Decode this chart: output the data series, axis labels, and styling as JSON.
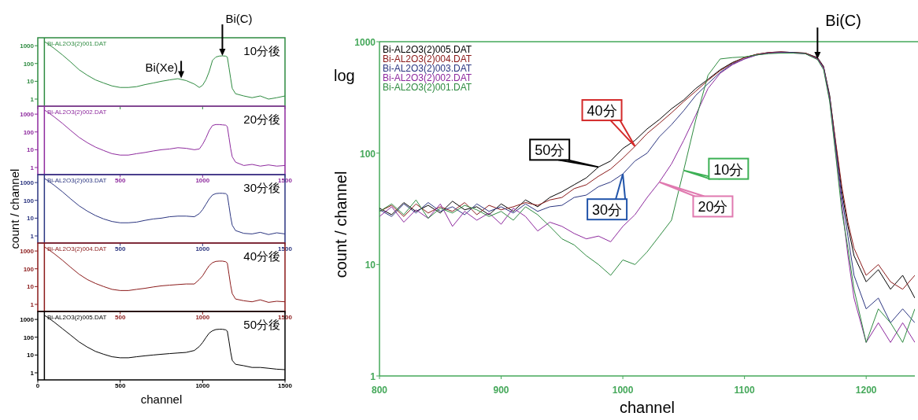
{
  "chart_data": [
    {
      "type": "line",
      "log": true,
      "legend": "top left",
      "tick_labels": "y",
      "xlim": [
        0,
        1500
      ],
      "ylim": [
        0.4,
        2800
      ],
      "xticks": [
        0,
        500,
        1000,
        1500
      ],
      "yticks": [
        1,
        10,
        100,
        1000
      ],
      "annotations": [
        "10分後",
        {
          "text": "Bi(Xe)",
          "x": 870,
          "y": 15
        },
        {
          "text": "Bi(C)",
          "x": 1120,
          "y": 270
        }
      ],
      "ref_lines": [
        {
          "axis": "x",
          "value": 40
        }
      ],
      "x": [
        40,
        60,
        100,
        150,
        200,
        250,
        300,
        350,
        400,
        450,
        500,
        550,
        600,
        650,
        700,
        750,
        800,
        850,
        900,
        950,
        980,
        1000,
        1020,
        1040,
        1060,
        1080,
        1100,
        1120,
        1140,
        1150,
        1160,
        1170,
        1180,
        1200,
        1250,
        1300,
        1350,
        1400,
        1450,
        1500
      ],
      "series": [
        {
          "name": "Bi-AL2O3(2)001.DAT",
          "color": "#2e8b40",
          "values": [
            1700,
            1300,
            700,
            300,
            120,
            45,
            22,
            12,
            8,
            5.5,
            4.5,
            4.5,
            5,
            6.5,
            8,
            10,
            12,
            14,
            11,
            7,
            4.5,
            6,
            12,
            35,
            150,
            230,
            260,
            270,
            260,
            230,
            60,
            15,
            4,
            2,
            1.5,
            1.2,
            1.5,
            1,
            1.2,
            1.5
          ]
        }
      ]
    },
    {
      "type": "line",
      "log": true,
      "legend": "top left",
      "xlim": [
        0,
        1500
      ],
      "ylim": [
        0.4,
        2800
      ],
      "xticks": [
        500,
        1000,
        1500
      ],
      "yticks": [
        1,
        10,
        100,
        1000
      ],
      "annotations": [
        "20分後"
      ],
      "ref_lines": [
        {
          "axis": "x",
          "value": 40
        }
      ],
      "x": [
        40,
        60,
        100,
        150,
        200,
        250,
        300,
        350,
        400,
        450,
        500,
        550,
        600,
        650,
        700,
        750,
        800,
        850,
        900,
        950,
        980,
        1000,
        1020,
        1040,
        1060,
        1080,
        1100,
        1120,
        1140,
        1150,
        1160,
        1170,
        1180,
        1200,
        1250,
        1300,
        1350,
        1400,
        1450,
        1500
      ],
      "series": [
        {
          "name": "Bi-AL2O3(2)002.DAT",
          "color": "#8e2a9e",
          "values": [
            1700,
            1300,
            700,
            300,
            120,
            50,
            25,
            14,
            9,
            6,
            5,
            5,
            6,
            7,
            8.5,
            10,
            11,
            13,
            12,
            10,
            11,
            20,
            45,
            120,
            230,
            260,
            260,
            250,
            240,
            200,
            50,
            12,
            4,
            2,
            1.3,
            1.5,
            1.2,
            1.4,
            1.2,
            1.3
          ]
        }
      ]
    },
    {
      "type": "line",
      "log": true,
      "legend": "top left",
      "xlim": [
        0,
        1500
      ],
      "ylim": [
        0.4,
        2800
      ],
      "xticks": [
        500,
        1000,
        1500
      ],
      "yticks": [
        1,
        10,
        100,
        1000
      ],
      "ylabel": "count / channel",
      "annotations": [
        "30分後"
      ],
      "ref_lines": [
        {
          "axis": "x",
          "value": 40
        }
      ],
      "x": [
        40,
        60,
        100,
        150,
        200,
        250,
        300,
        350,
        400,
        450,
        500,
        550,
        600,
        650,
        700,
        750,
        800,
        850,
        900,
        950,
        980,
        1000,
        1020,
        1040,
        1060,
        1080,
        1100,
        1120,
        1140,
        1150,
        1160,
        1170,
        1180,
        1200,
        1250,
        1300,
        1350,
        1400,
        1450,
        1500
      ],
      "series": [
        {
          "name": "Bi-AL2O3(2)003.DAT",
          "color": "#2b3580",
          "values": [
            1700,
            1300,
            700,
            300,
            120,
            50,
            25,
            14,
            9,
            6.5,
            5.5,
            5.5,
            6,
            7.5,
            9,
            10,
            12,
            13,
            13,
            12,
            18,
            30,
            60,
            120,
            200,
            240,
            250,
            250,
            240,
            200,
            50,
            12,
            4,
            2,
            1.4,
            1.3,
            1.6,
            1.2,
            1.5,
            1.3
          ]
        }
      ]
    },
    {
      "type": "line",
      "log": true,
      "legend": "top left",
      "xlim": [
        0,
        1500
      ],
      "ylim": [
        0.4,
        2800
      ],
      "xticks": [
        500,
        1000,
        1500
      ],
      "yticks": [
        1,
        10,
        100,
        1000
      ],
      "annotations": [
        "40分後"
      ],
      "ref_lines": [
        {
          "axis": "x",
          "value": 40
        }
      ],
      "x": [
        40,
        60,
        100,
        150,
        200,
        250,
        300,
        350,
        400,
        450,
        500,
        550,
        600,
        650,
        700,
        750,
        800,
        850,
        900,
        950,
        980,
        1000,
        1020,
        1040,
        1060,
        1080,
        1100,
        1120,
        1140,
        1150,
        1160,
        1170,
        1180,
        1200,
        1250,
        1300,
        1350,
        1400,
        1450,
        1500
      ],
      "series": [
        {
          "name": "Bi-AL2O3(2)004.DAT",
          "color": "#8b1a1a",
          "values": [
            1700,
            1300,
            700,
            300,
            120,
            50,
            25,
            15,
            10,
            7,
            6,
            6,
            7,
            8,
            9.5,
            11,
            12,
            13,
            14,
            14,
            25,
            40,
            80,
            150,
            220,
            260,
            270,
            270,
            250,
            210,
            50,
            12,
            4,
            2,
            1.6,
            1.4,
            1.8,
            1.3,
            1.5,
            1.4
          ]
        }
      ]
    },
    {
      "type": "line",
      "log": true,
      "legend": "top left",
      "xlim": [
        0,
        1500
      ],
      "ylim": [
        0.4,
        2800
      ],
      "xticks": [
        0,
        500,
        1000,
        1500
      ],
      "yticks": [
        1,
        10,
        100,
        1000
      ],
      "xlabel": "channel",
      "annotations": [
        "50分後"
      ],
      "ref_lines": [
        {
          "axis": "x",
          "value": 40
        }
      ],
      "x": [
        40,
        60,
        100,
        150,
        200,
        250,
        300,
        350,
        400,
        450,
        500,
        550,
        600,
        650,
        700,
        750,
        800,
        850,
        900,
        950,
        980,
        1000,
        1020,
        1040,
        1060,
        1080,
        1100,
        1120,
        1140,
        1150,
        1160,
        1170,
        1180,
        1200,
        1250,
        1300,
        1350,
        1400,
        1450,
        1500
      ],
      "series": [
        {
          "name": "Bi-AL2O3(2)005.DAT",
          "color": "#000000",
          "values": [
            1700,
            1300,
            700,
            300,
            130,
            55,
            28,
            16,
            11,
            8,
            7,
            7,
            8,
            9,
            10,
            11,
            12,
            13,
            14,
            18,
            30,
            50,
            95,
            170,
            230,
            270,
            280,
            280,
            260,
            220,
            60,
            15,
            5,
            3,
            2.5,
            2,
            2,
            1.8,
            1.6,
            1.5
          ]
        }
      ]
    },
    {
      "type": "line",
      "log": true,
      "legend": "top left",
      "xlim": [
        800,
        1240
      ],
      "ylim": [
        1,
        1000
      ],
      "xticks": [
        800,
        900,
        1000,
        1100,
        1200
      ],
      "yticks": [
        1,
        10,
        100,
        1000
      ],
      "xlabel": "channel",
      "ylabel": "count / channel",
      "annotations": [
        "log",
        {
          "text": "Bi(C)",
          "x": 1160,
          "y": 700
        },
        {
          "text": "50分",
          "x": 980,
          "y": 75
        },
        {
          "text": "40分",
          "x": 1010,
          "y": 115
        },
        {
          "text": "30分",
          "x": 1000,
          "y": 65
        },
        {
          "text": "20分",
          "x": 1030,
          "y": 55
        },
        {
          "text": "10分",
          "x": 1050,
          "y": 70
        }
      ],
      "x": [
        800,
        810,
        820,
        830,
        840,
        850,
        860,
        870,
        880,
        890,
        900,
        910,
        920,
        930,
        940,
        950,
        960,
        970,
        980,
        990,
        1000,
        1010,
        1020,
        1030,
        1040,
        1050,
        1060,
        1070,
        1080,
        1090,
        1100,
        1110,
        1120,
        1130,
        1140,
        1150,
        1160,
        1165,
        1170,
        1175,
        1180,
        1185,
        1190,
        1200,
        1210,
        1220,
        1230,
        1240
      ],
      "series": [
        {
          "name": "Bi-AL2O3(2)005.DAT",
          "color": "#000000",
          "values": [
            32,
            28,
            36,
            30,
            34,
            29,
            37,
            31,
            33,
            28,
            35,
            30,
            38,
            33,
            40,
            45,
            52,
            60,
            75,
            85,
            110,
            130,
            165,
            200,
            250,
            300,
            380,
            460,
            560,
            650,
            720,
            770,
            800,
            810,
            800,
            790,
            720,
            600,
            330,
            120,
            45,
            22,
            12,
            7,
            9,
            6,
            8,
            5
          ]
        },
        {
          "name": "Bi-AL2O3(2)004.DAT",
          "color": "#8b1a1a",
          "values": [
            30,
            34,
            27,
            35,
            29,
            33,
            30,
            36,
            28,
            34,
            31,
            33,
            36,
            34,
            38,
            40,
            48,
            52,
            62,
            72,
            90,
            115,
            150,
            185,
            230,
            290,
            360,
            450,
            550,
            640,
            720,
            770,
            800,
            810,
            800,
            790,
            710,
            590,
            320,
            125,
            50,
            24,
            14,
            8,
            10,
            7,
            6,
            8
          ]
        },
        {
          "name": "Bi-AL2O3(2)003.DAT",
          "color": "#2b3580",
          "values": [
            31,
            27,
            35,
            29,
            36,
            30,
            33,
            28,
            35,
            30,
            33,
            29,
            35,
            30,
            33,
            34,
            40,
            42,
            50,
            55,
            65,
            85,
            100,
            140,
            180,
            240,
            330,
            420,
            530,
            630,
            700,
            760,
            790,
            800,
            800,
            780,
            700,
            580,
            310,
            110,
            40,
            18,
            8,
            4,
            5,
            3,
            4,
            3
          ]
        },
        {
          "name": "Bi-AL2O3(2)002.DAT",
          "color": "#8e2a9e",
          "values": [
            27,
            33,
            24,
            31,
            26,
            35,
            22,
            30,
            25,
            29,
            23,
            32,
            27,
            20,
            24,
            22,
            19,
            17,
            18,
            16,
            22,
            28,
            40,
            55,
            80,
            130,
            220,
            380,
            520,
            620,
            700,
            760,
            790,
            800,
            790,
            780,
            700,
            580,
            300,
            100,
            35,
            12,
            5,
            2,
            3,
            2,
            3,
            2
          ]
        },
        {
          "name": "Bi-AL2O3(2)001.DAT",
          "color": "#2e8b40",
          "values": [
            30,
            35,
            28,
            38,
            26,
            32,
            29,
            34,
            31,
            27,
            30,
            25,
            33,
            28,
            22,
            17,
            15,
            12,
            10,
            8,
            11,
            10,
            13,
            18,
            25,
            70,
            200,
            500,
            700,
            720,
            730,
            760,
            780,
            790,
            790,
            780,
            690,
            560,
            290,
            95,
            30,
            14,
            6,
            2,
            4,
            3,
            2,
            4
          ]
        }
      ]
    }
  ]
}
